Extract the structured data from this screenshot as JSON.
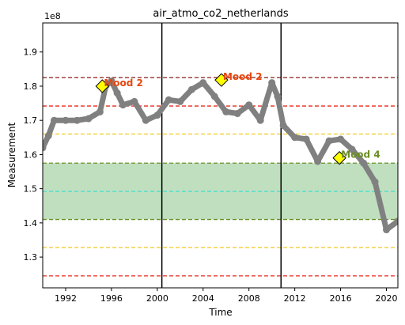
{
  "chart_data": {
    "type": "line",
    "title": "air_atmo_co2_netherlands",
    "xlabel": "Time",
    "ylabel": "Measurement",
    "y_scale_label": "1e8",
    "xlim": [
      1990.0,
      2021.0
    ],
    "ylim": [
      1.21,
      1.985
    ],
    "x_ticks": [
      1992,
      1996,
      2000,
      2004,
      2008,
      2012,
      2016,
      2020
    ],
    "y_ticks": [
      1.3,
      1.4,
      1.5,
      1.6,
      1.7,
      1.8,
      1.9
    ],
    "grid": false,
    "series": [
      {
        "color": "#808080",
        "x": [
          1990,
          1990.5,
          1991,
          1992,
          1993,
          1994,
          1995,
          1995.5,
          1996,
          1996.5,
          1997,
          1998,
          1999,
          2000,
          2001,
          2002,
          2003,
          2004,
          2005,
          2006,
          2007,
          2008,
          2009,
          2010,
          2010.5,
          2011,
          2012,
          2013,
          2014,
          2015,
          2016,
          2017,
          2018,
          2019,
          2020,
          2021
        ],
        "y": [
          1.62,
          1.655,
          1.7,
          1.7,
          1.7,
          1.705,
          1.725,
          1.8,
          1.815,
          1.78,
          1.745,
          1.755,
          1.7,
          1.715,
          1.76,
          1.755,
          1.79,
          1.81,
          1.77,
          1.725,
          1.72,
          1.745,
          1.7,
          1.81,
          1.77,
          1.685,
          1.65,
          1.645,
          1.58,
          1.64,
          1.645,
          1.615,
          1.575,
          1.52,
          1.38,
          1.405
        ]
      }
    ],
    "vertical_lines": [
      2000.4,
      2010.8
    ],
    "band": {
      "y0": 1.41,
      "y1": 1.575,
      "color": "#bfdfbf"
    },
    "hlines": [
      {
        "y": 1.825,
        "color": "#8b1a1a"
      },
      {
        "y": 1.742,
        "color": "#e8291c"
      },
      {
        "y": 1.66,
        "color": "#f2c81e"
      },
      {
        "y": 1.575,
        "color": "#6b8e23"
      },
      {
        "y": 1.492,
        "color": "#40e0d0"
      },
      {
        "y": 1.41,
        "color": "#6b8e23"
      },
      {
        "y": 1.328,
        "color": "#f2c81e"
      },
      {
        "y": 1.245,
        "color": "#e8291c"
      }
    ],
    "annotations": [
      {
        "x": 1995.2,
        "y": 1.8,
        "text": "Mood 2",
        "color": "#e8460f"
      },
      {
        "x": 2005.6,
        "y": 1.818,
        "text": "Mood 2",
        "color": "#e8460f"
      },
      {
        "x": 2015.9,
        "y": 1.59,
        "text": "Mood 4",
        "color": "#6b8e23"
      }
    ]
  }
}
